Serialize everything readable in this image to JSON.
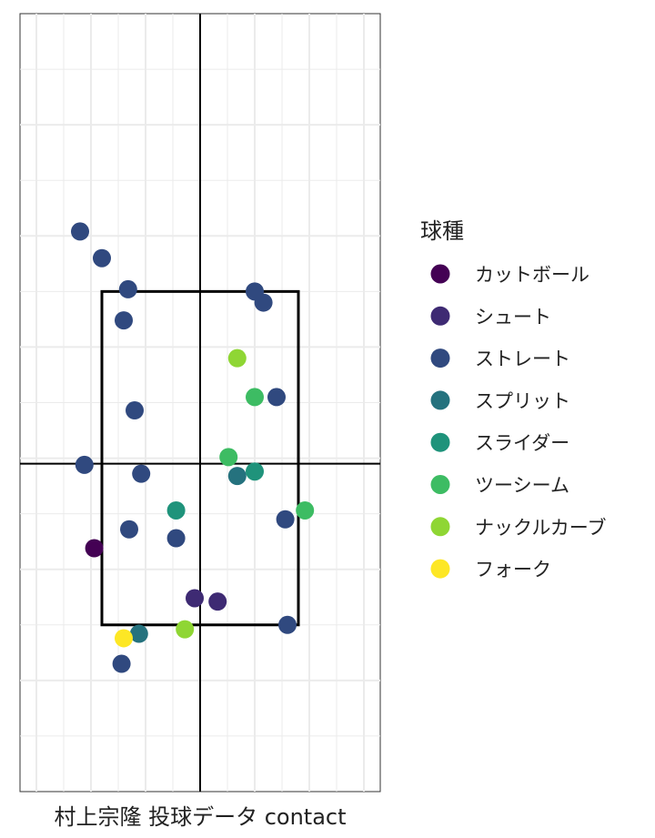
{
  "chart_data": {
    "type": "scatter",
    "title": "",
    "xlabel": "村上宗隆 投球データ contact",
    "ylabel": "",
    "xlim": [
      -1.65,
      1.65
    ],
    "ylim": [
      0,
      7
    ],
    "grid": true,
    "legend": {
      "title": "球種",
      "placement": "right",
      "entries": [
        {
          "name": "カットボール",
          "color": "#440154"
        },
        {
          "name": "シュート",
          "color": "#3e2a73"
        },
        {
          "name": "ストレート",
          "color": "#30497f"
        },
        {
          "name": "スプリット",
          "color": "#25727e"
        },
        {
          "name": "スライダー",
          "color": "#1f937b"
        },
        {
          "name": "ツーシーム",
          "color": "#3dbc63"
        },
        {
          "name": "ナックルカーブ",
          "color": "#8fd634"
        },
        {
          "name": "フォーク",
          "color": "#fde725"
        }
      ]
    },
    "strike_zone": {
      "x": [
        -0.9,
        0.9
      ],
      "y": [
        1.5,
        4.5
      ]
    },
    "reference_lines": {
      "x": 0,
      "y": 2.95
    },
    "series": [
      {
        "name": "カットボール",
        "points": [
          [
            -0.97,
            2.19
          ]
        ]
      },
      {
        "name": "シュート",
        "points": [
          [
            -0.05,
            1.74
          ],
          [
            0.16,
            1.71
          ]
        ]
      },
      {
        "name": "ストレート",
        "points": [
          [
            -1.1,
            5.04
          ],
          [
            -0.9,
            4.8
          ],
          [
            -0.66,
            4.52
          ],
          [
            -0.7,
            4.24
          ],
          [
            -0.6,
            3.43
          ],
          [
            -1.06,
            2.94
          ],
          [
            -0.54,
            2.86
          ],
          [
            -0.65,
            2.36
          ],
          [
            -0.22,
            2.28
          ],
          [
            0.5,
            4.5
          ],
          [
            0.58,
            4.4
          ],
          [
            0.7,
            3.55
          ],
          [
            0.78,
            2.45
          ],
          [
            0.8,
            1.5
          ],
          [
            -0.72,
            1.15
          ]
        ]
      },
      {
        "name": "スプリット",
        "points": [
          [
            0.34,
            2.84
          ],
          [
            -0.56,
            1.42
          ]
        ]
      },
      {
        "name": "スライダー",
        "points": [
          [
            -0.22,
            2.53
          ],
          [
            0.5,
            2.88
          ]
        ]
      },
      {
        "name": "ツーシーム",
        "points": [
          [
            0.5,
            3.55
          ],
          [
            0.26,
            3.01
          ],
          [
            0.96,
            2.53
          ]
        ]
      },
      {
        "name": "ナックルカーブ",
        "points": [
          [
            0.34,
            3.9
          ],
          [
            -0.14,
            1.46
          ]
        ]
      },
      {
        "name": "フォーク",
        "points": [
          [
            -0.7,
            1.38
          ]
        ]
      }
    ]
  }
}
